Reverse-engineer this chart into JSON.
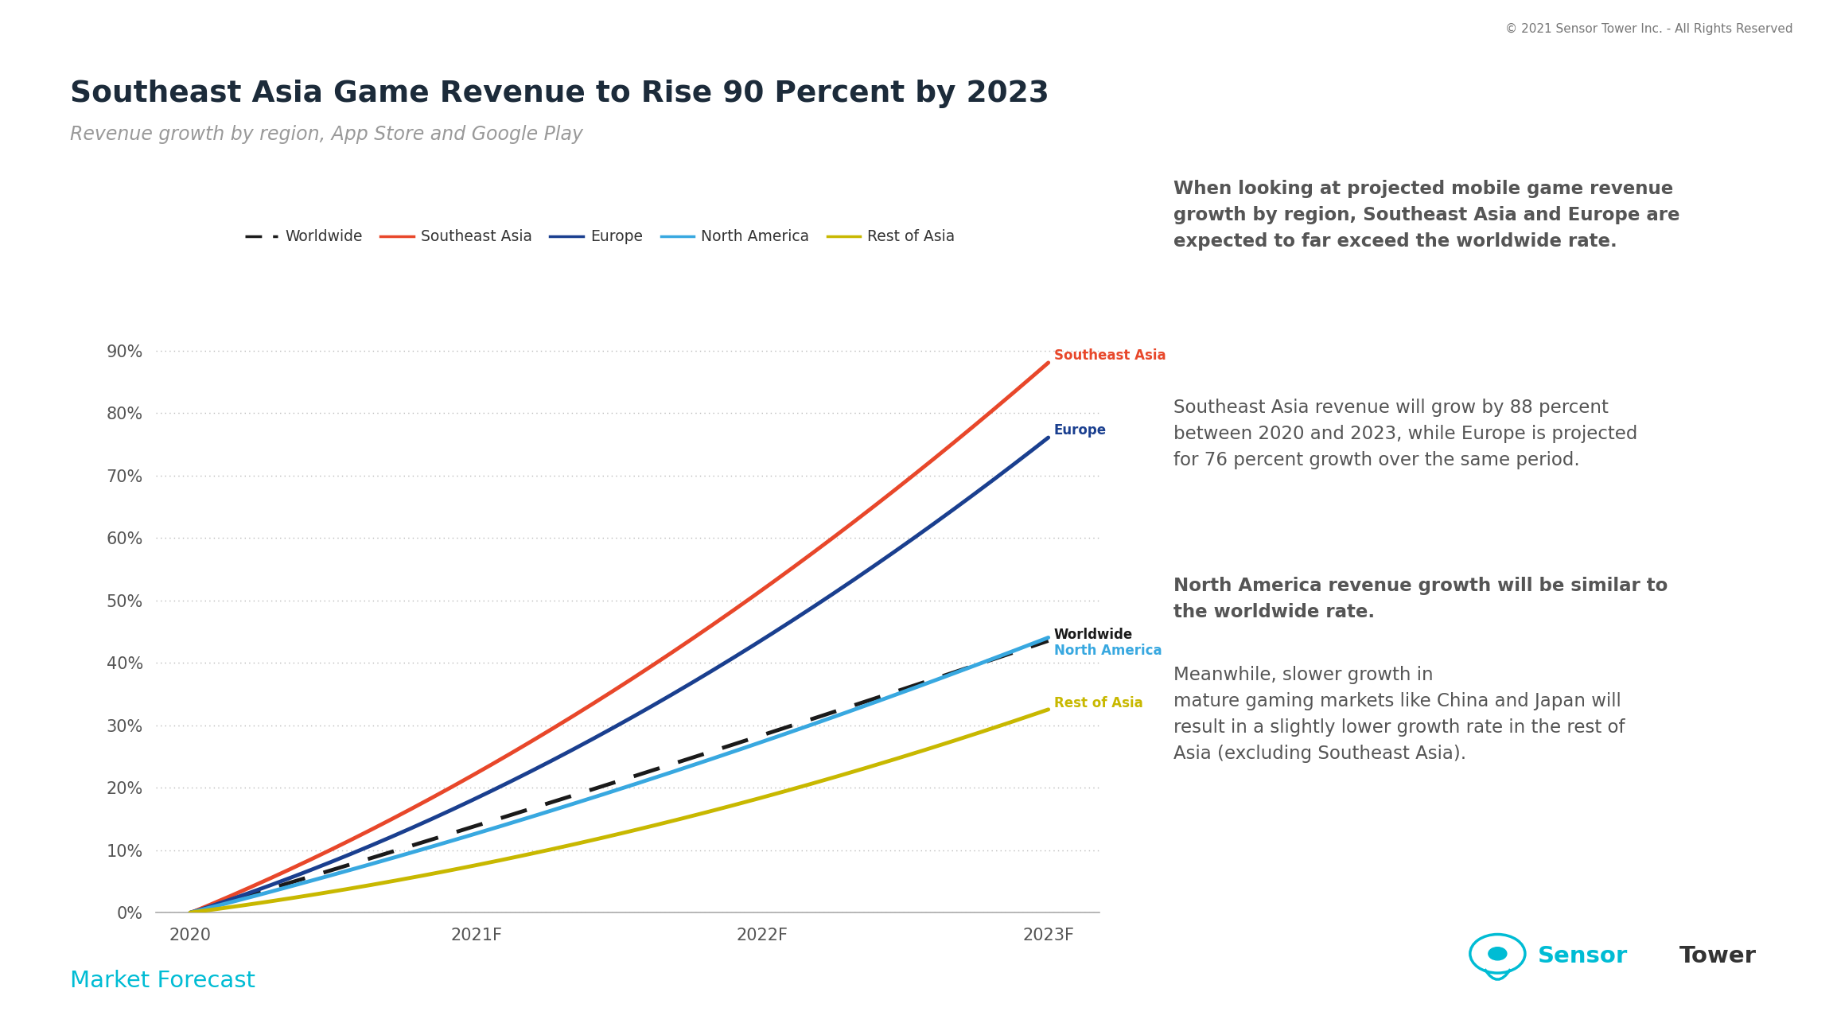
{
  "title": "Southeast Asia Game Revenue to Rise 90 Percent by 2023",
  "subtitle": "Revenue growth by region, App Store and Google Play",
  "copyright": "© 2021 Sensor Tower Inc. - All Rights Reserved",
  "x_values": [
    2020,
    2021,
    2022,
    2023
  ],
  "x_labels": [
    "2020",
    "2021F",
    "2022F",
    "2023F"
  ],
  "series": [
    {
      "name": "Worldwide",
      "color": "#1a1a1a",
      "style": "dashed",
      "values": [
        0,
        0.138,
        0.285,
        0.435
      ]
    },
    {
      "name": "Southeast Asia",
      "color": "#E8472A",
      "style": "solid",
      "values": [
        0,
        0.22,
        0.52,
        0.88
      ]
    },
    {
      "name": "Europe",
      "color": "#1A3F8F",
      "style": "solid",
      "values": [
        0,
        0.18,
        0.44,
        0.76
      ]
    },
    {
      "name": "North America",
      "color": "#38A8E0",
      "style": "solid",
      "values": [
        0,
        0.125,
        0.275,
        0.44
      ]
    },
    {
      "name": "Rest of Asia",
      "color": "#C8B800",
      "style": "solid",
      "values": [
        0,
        0.075,
        0.185,
        0.325
      ]
    }
  ],
  "ylim": [
    0,
    0.95
  ],
  "yticks": [
    0.0,
    0.1,
    0.2,
    0.3,
    0.4,
    0.5,
    0.6,
    0.7,
    0.8,
    0.9
  ],
  "ytick_labels": [
    "0%",
    "10%",
    "20%",
    "30%",
    "40%",
    "50%",
    "60%",
    "70%",
    "80%",
    "90%"
  ],
  "bg_color_left": "#ffffff",
  "bg_color_right": "#f0f0f0",
  "footer_left": "Market Forecast",
  "footer_left_color": "#00BCD4",
  "title_color": "#1c2b3a",
  "subtitle_color": "#999999",
  "panel_split": 0.615
}
